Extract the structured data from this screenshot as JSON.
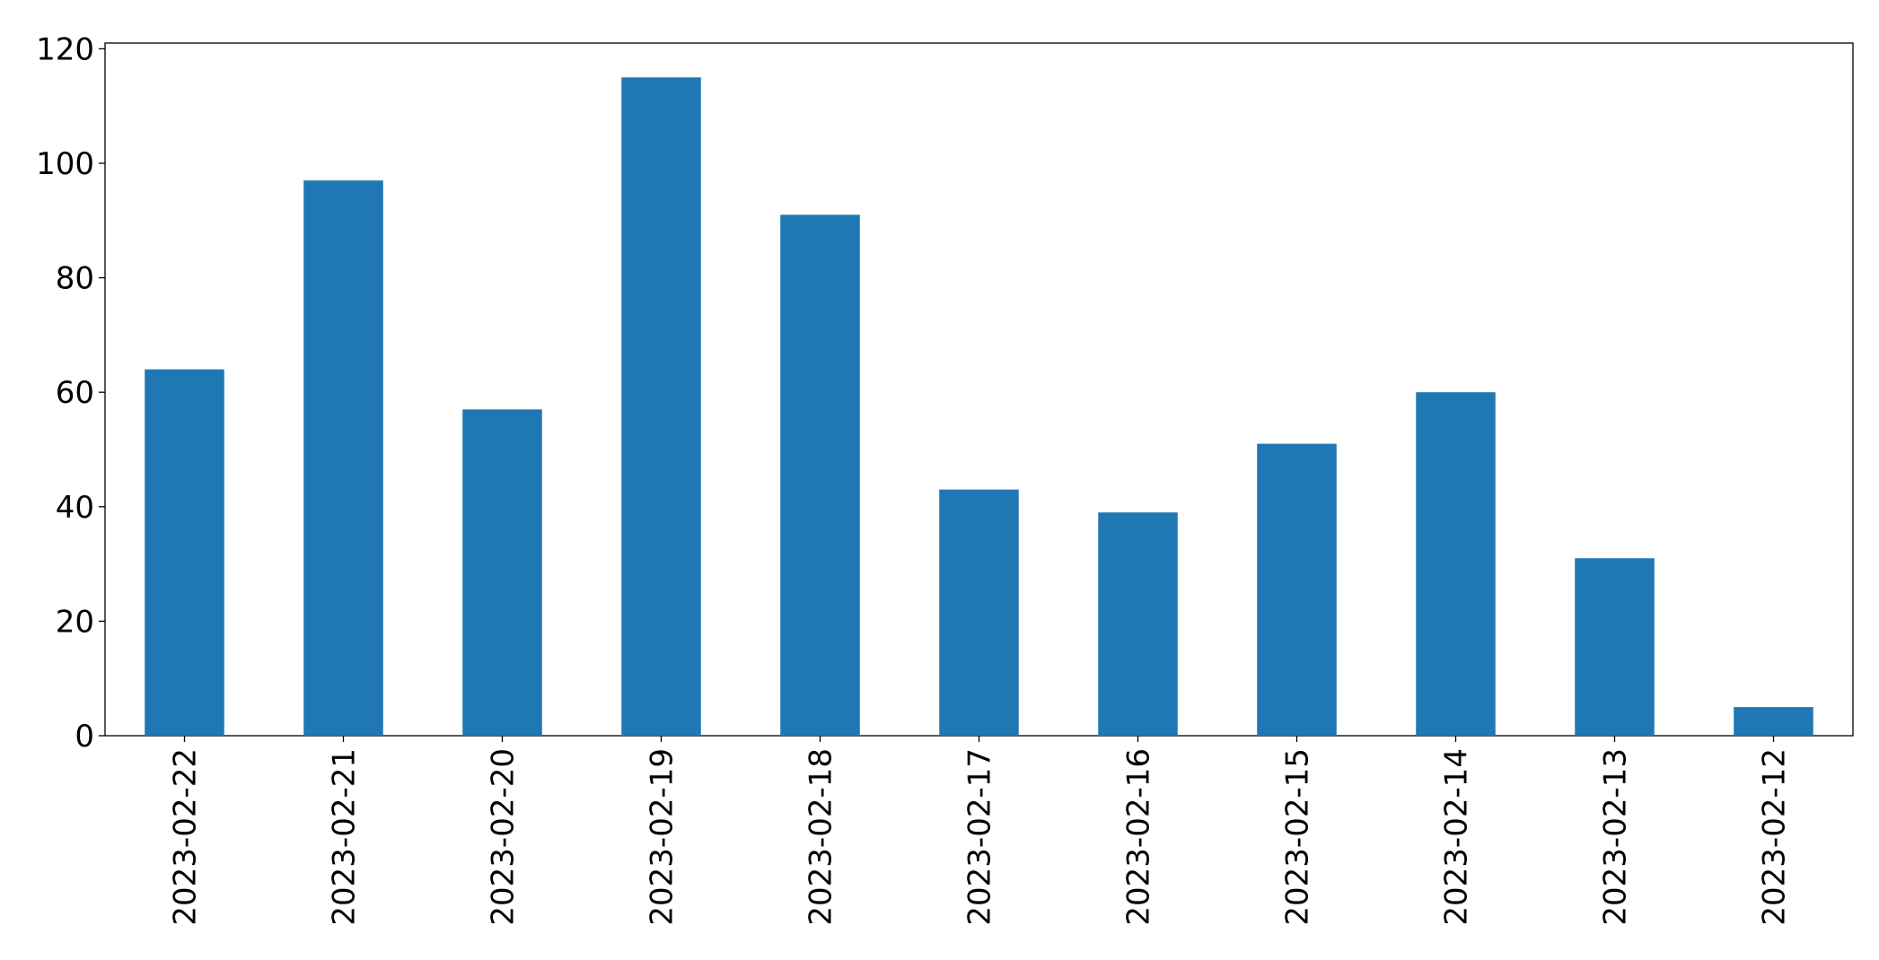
{
  "chart_data": {
    "type": "bar",
    "categories": [
      "2023-02-22",
      "2023-02-21",
      "2023-02-20",
      "2023-02-19",
      "2023-02-18",
      "2023-02-17",
      "2023-02-16",
      "2023-02-15",
      "2023-02-14",
      "2023-02-13",
      "2023-02-12"
    ],
    "values": [
      64,
      97,
      57,
      115,
      91,
      43,
      39,
      51,
      60,
      31,
      5
    ],
    "color": "#1f77b4",
    "ylim": [
      0,
      121
    ],
    "yticks": [
      0,
      20,
      40,
      60,
      80,
      100,
      120
    ],
    "grid": false
  }
}
